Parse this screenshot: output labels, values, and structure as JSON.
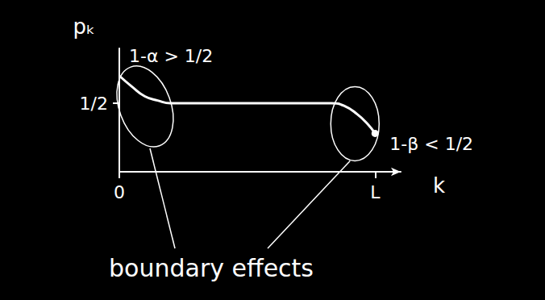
{
  "chart_data": {
    "type": "line",
    "x_label": "k",
    "y_label": "pₖ",
    "x": [
      0,
      0.5,
      1,
      1.5,
      2,
      8.3,
      8.8,
      9.3,
      9.7,
      10
    ],
    "values": [
      0.7,
      0.62,
      0.55,
      0.52,
      0.5,
      0.5,
      0.48,
      0.42,
      0.35,
      0.28
    ],
    "color": "#ffffff",
    "marker": "circle",
    "line_style": "solid",
    "xlim": [
      0,
      11
    ],
    "xticks": [
      0,
      {
        "value": 10,
        "label": "L"
      }
    ],
    "ylim": [
      0,
      0.9
    ],
    "yticks": [
      {
        "value": 0.5,
        "label": "1/2"
      }
    ],
    "grid": false,
    "annotations": {
      "start": "1-α > 1/2",
      "end": "1-β < 1/2",
      "note": "boundary effects"
    }
  }
}
